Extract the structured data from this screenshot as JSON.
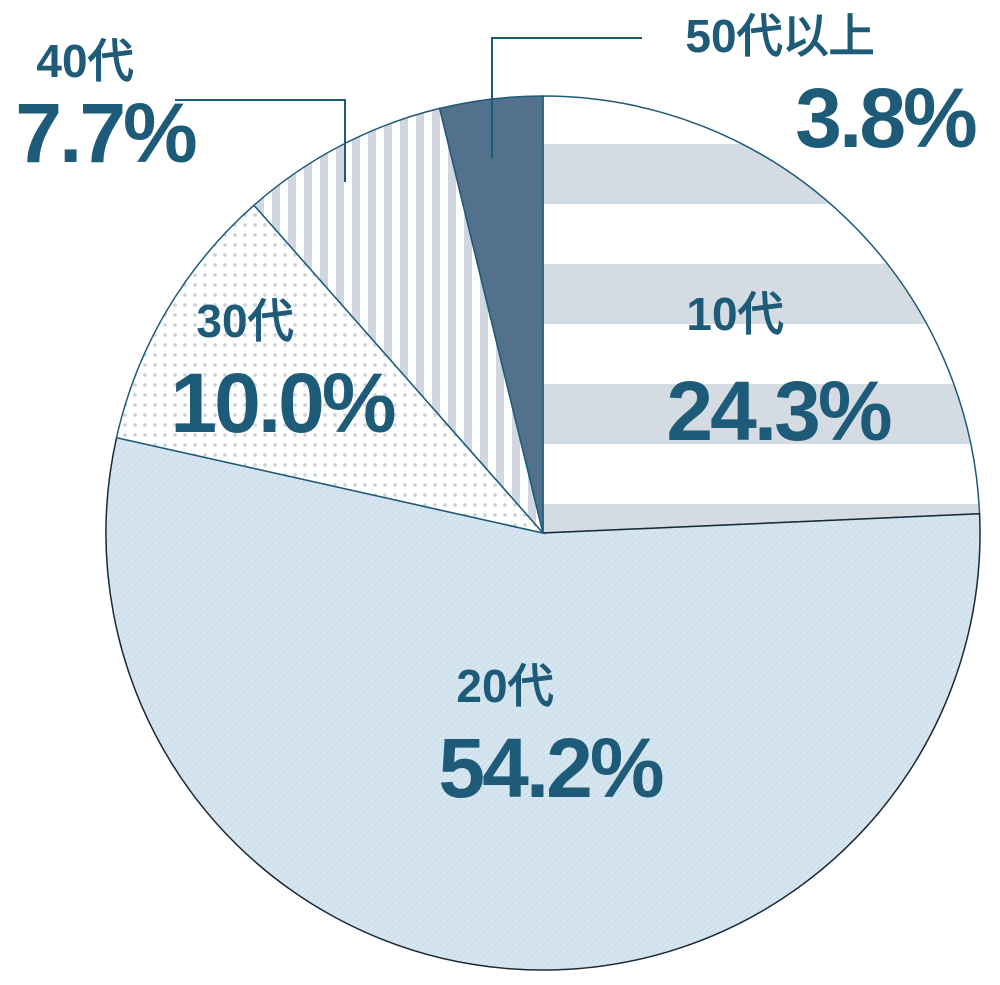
{
  "chart_data": {
    "type": "pie",
    "categories": [
      "10代",
      "20代",
      "30代",
      "40代",
      "50代以上"
    ],
    "values": [
      24.3,
      54.2,
      10.0,
      7.7,
      3.8
    ],
    "value_labels": [
      "24.3%",
      "54.2%",
      "10.0%",
      "7.7%",
      "3.8%"
    ]
  }
}
